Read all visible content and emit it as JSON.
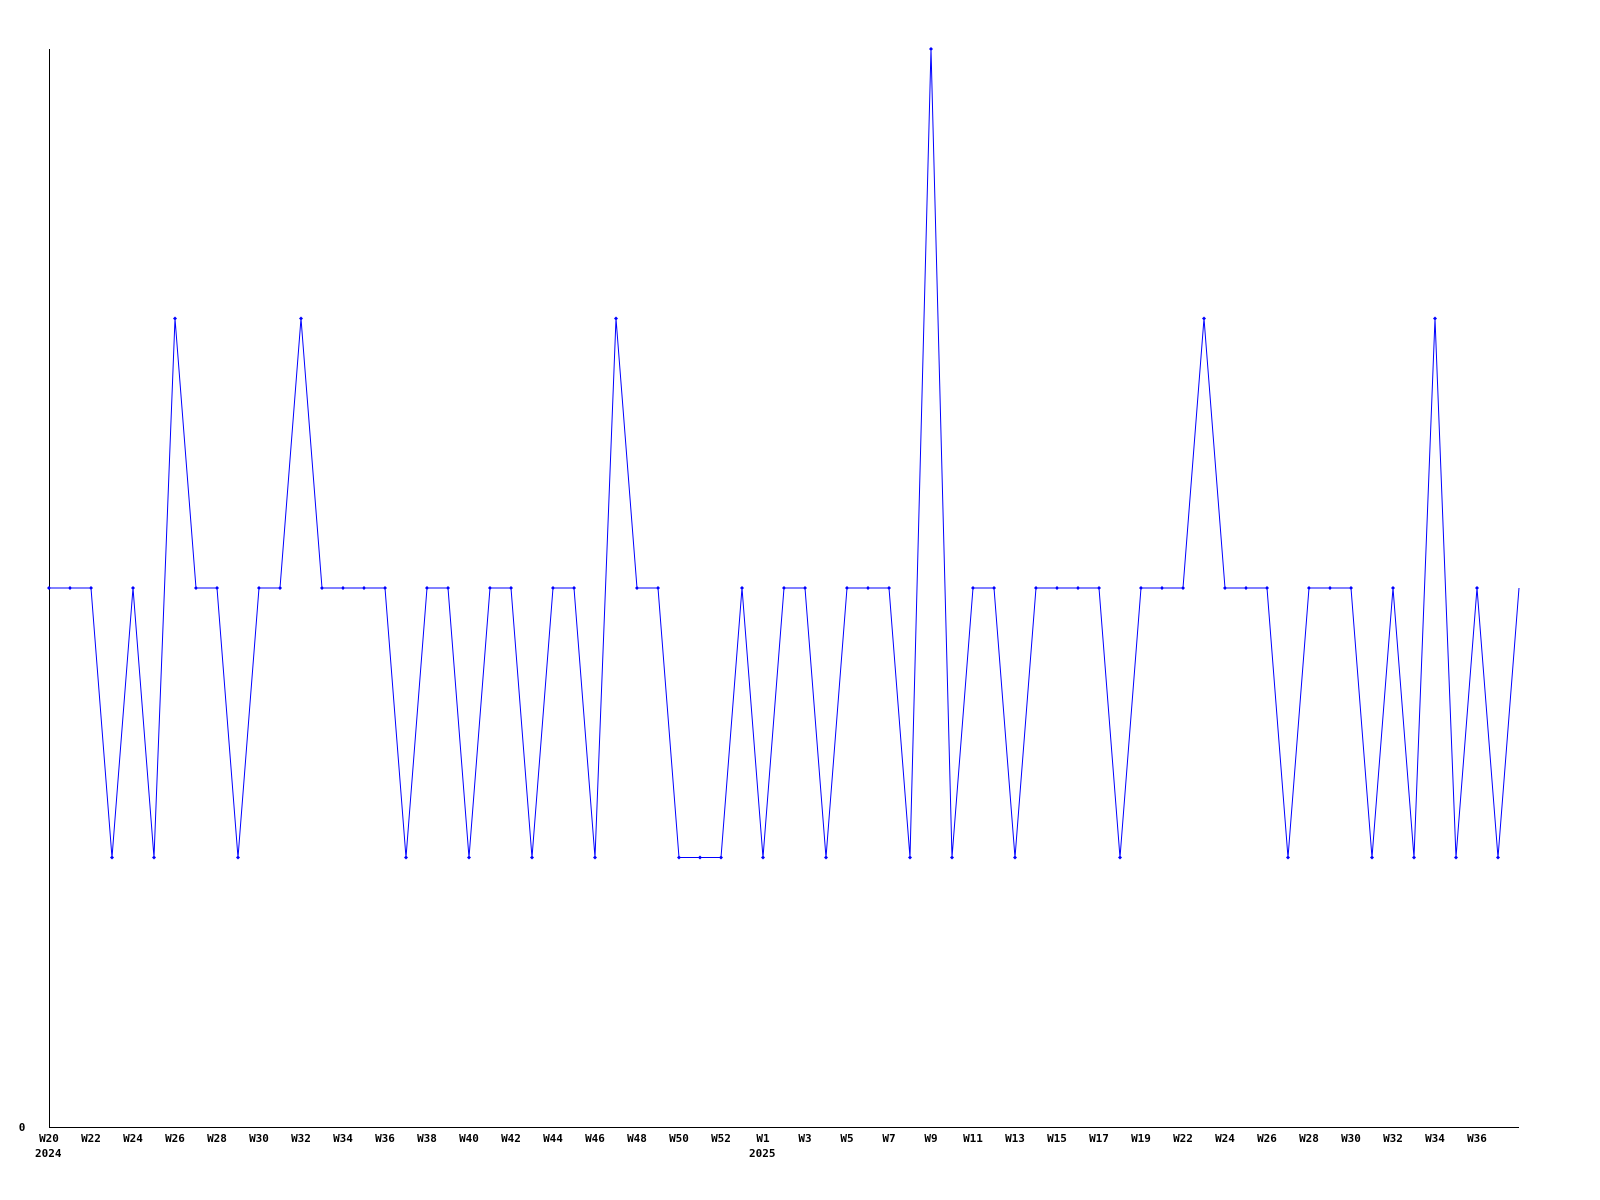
{
  "chart_data": {
    "type": "line",
    "title": "",
    "xlabel": "",
    "ylabel": "",
    "ylim": [
      0,
      4
    ],
    "y_ticks": [
      {
        "value": 0,
        "label": "0"
      }
    ],
    "grid": false,
    "colors": {
      "series": "#0000ff",
      "axis": "#000000",
      "background": "#ffffff"
    },
    "x_ticks": [
      {
        "at": 0,
        "label": "W20",
        "year": "2024"
      },
      {
        "at": 2,
        "label": "W22"
      },
      {
        "at": 4,
        "label": "W24"
      },
      {
        "at": 6,
        "label": "W26"
      },
      {
        "at": 8,
        "label": "W28"
      },
      {
        "at": 10,
        "label": "W30"
      },
      {
        "at": 12,
        "label": "W32"
      },
      {
        "at": 14,
        "label": "W34"
      },
      {
        "at": 16,
        "label": "W36"
      },
      {
        "at": 18,
        "label": "W38"
      },
      {
        "at": 20,
        "label": "W40"
      },
      {
        "at": 22,
        "label": "W42"
      },
      {
        "at": 24,
        "label": "W44"
      },
      {
        "at": 26,
        "label": "W46"
      },
      {
        "at": 28,
        "label": "W48"
      },
      {
        "at": 30,
        "label": "W50"
      },
      {
        "at": 32,
        "label": "W52"
      },
      {
        "at": 34,
        "label": "W1",
        "year": "2025"
      },
      {
        "at": 36,
        "label": "W3"
      },
      {
        "at": 38,
        "label": "W5"
      },
      {
        "at": 40,
        "label": "W7"
      },
      {
        "at": 42,
        "label": "W9"
      },
      {
        "at": 44,
        "label": "W11"
      },
      {
        "at": 46,
        "label": "W13"
      },
      {
        "at": 48,
        "label": "W15"
      },
      {
        "at": 50,
        "label": "W17"
      },
      {
        "at": 52,
        "label": "W19"
      },
      {
        "at": 54,
        "label": "W22"
      },
      {
        "at": 56,
        "label": "W24"
      },
      {
        "at": 58,
        "label": "W26"
      },
      {
        "at": 60,
        "label": "W28"
      },
      {
        "at": 62,
        "label": "W30"
      },
      {
        "at": 64,
        "label": "W32"
      },
      {
        "at": 66,
        "label": "W34"
      },
      {
        "at": 68,
        "label": "W36"
      }
    ],
    "series": [
      {
        "values": [
          2,
          2,
          2,
          1,
          2,
          1,
          3,
          2,
          2,
          1,
          2,
          2,
          3,
          2,
          2,
          2,
          2,
          1,
          2,
          2,
          1,
          2,
          2,
          1,
          2,
          2,
          1,
          3,
          2,
          2,
          1,
          1,
          1,
          2,
          1,
          2,
          2,
          1,
          2,
          2,
          2,
          1,
          4,
          1,
          2,
          2,
          1,
          2,
          2,
          2,
          2,
          1,
          2,
          2,
          2,
          3,
          2,
          2,
          2,
          1,
          2,
          2,
          2,
          1,
          2,
          1,
          3,
          1,
          2,
          1,
          2
        ]
      }
    ]
  }
}
